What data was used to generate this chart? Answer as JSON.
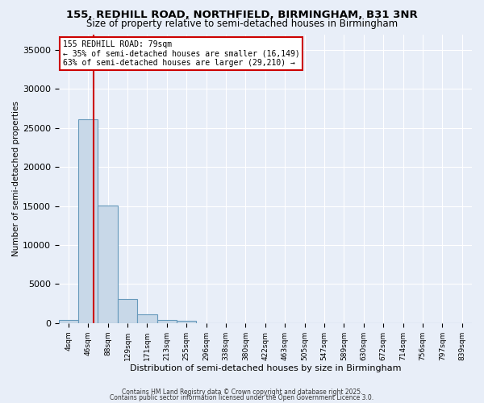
{
  "title1": "155, REDHILL ROAD, NORTHFIELD, BIRMINGHAM, B31 3NR",
  "title2": "Size of property relative to semi-detached houses in Birmingham",
  "xlabel": "Distribution of semi-detached houses by size in Birmingham",
  "ylabel": "Number of semi-detached properties",
  "bin_labels": [
    "4sqm",
    "46sqm",
    "88sqm",
    "129sqm",
    "171sqm",
    "213sqm",
    "255sqm",
    "296sqm",
    "338sqm",
    "380sqm",
    "422sqm",
    "463sqm",
    "505sqm",
    "547sqm",
    "589sqm",
    "630sqm",
    "672sqm",
    "714sqm",
    "756sqm",
    "797sqm",
    "839sqm"
  ],
  "bar_values": [
    400,
    26100,
    15100,
    3050,
    1100,
    400,
    300,
    0,
    0,
    0,
    0,
    0,
    0,
    0,
    0,
    0,
    0,
    0,
    0,
    0,
    0
  ],
  "bar_color": "#c8d8e8",
  "bar_edge_color": "#6699bb",
  "annotation_text": "155 REDHILL ROAD: 79sqm\n← 35% of semi-detached houses are smaller (16,149)\n63% of semi-detached houses are larger (29,210) →",
  "annotation_box_color": "white",
  "annotation_text_color": "black",
  "annotation_border_color": "#cc0000",
  "red_line_color": "#cc0000",
  "ylim": [
    0,
    37000
  ],
  "yticks": [
    0,
    5000,
    10000,
    15000,
    20000,
    25000,
    30000,
    35000
  ],
  "background_color": "#e8eef8",
  "grid_color": "white",
  "footer1": "Contains HM Land Registry data © Crown copyright and database right 2025.",
  "footer2": "Contains public sector information licensed under the Open Government Licence 3.0."
}
